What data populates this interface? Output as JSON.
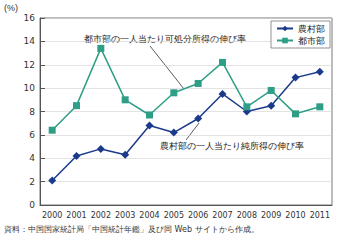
{
  "chart_data": {
    "type": "line",
    "y_label": "(%)",
    "categories": [
      "2000",
      "2001",
      "2002",
      "2003",
      "2004",
      "2005",
      "2006",
      "2007",
      "2008",
      "2009",
      "2010",
      "2011"
    ],
    "series": [
      {
        "name": "農村部",
        "color": "#1b3a8c",
        "marker": "diamond",
        "values": [
          2.1,
          4.2,
          4.8,
          4.3,
          6.8,
          6.2,
          7.4,
          9.5,
          8.0,
          8.5,
          10.9,
          11.4
        ]
      },
      {
        "name": "都市部",
        "color": "#2e9e86",
        "marker": "square",
        "values": [
          6.4,
          8.5,
          13.4,
          9.0,
          7.7,
          9.6,
          10.4,
          12.2,
          8.4,
          9.8,
          7.8,
          8.4
        ]
      }
    ],
    "ylim": [
      0,
      16
    ],
    "yticks": [
      0,
      2,
      4,
      6,
      8,
      10,
      12,
      14,
      16
    ],
    "grid": true,
    "legend": "upper right",
    "annotations": [
      "都市部の一人当たり可処分所得の伸び率",
      "農村部の一人当たり純所得の伸び率"
    ],
    "source": "資料：中国国家統計局「中国統計年鑑」及び同 Web サイトから作成。"
  }
}
